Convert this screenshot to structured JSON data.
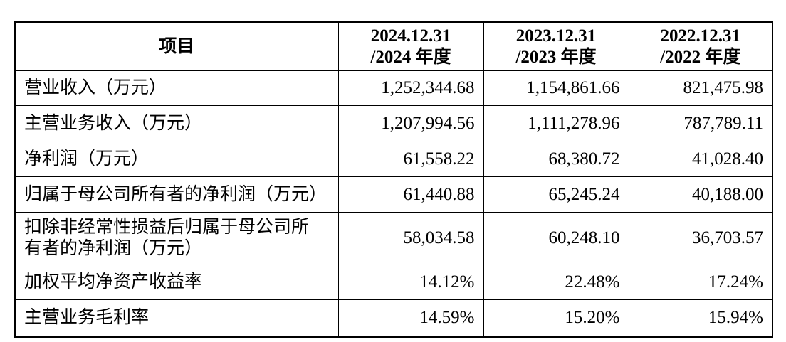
{
  "table": {
    "header": {
      "label": "项目",
      "columns": [
        [
          "2024.12.31",
          "/2024 年度"
        ],
        [
          "2023.12.31",
          "/2023 年度"
        ],
        [
          "2022.12.31",
          "/2022 年度"
        ]
      ]
    },
    "rows": [
      {
        "label": [
          "营业收入（万元）"
        ],
        "values": [
          "1,252,344.68",
          "1,154,861.66",
          "821,475.98"
        ]
      },
      {
        "label": [
          "主营业务收入（万元）"
        ],
        "values": [
          "1,207,994.56",
          "1,111,278.96",
          "787,789.11"
        ]
      },
      {
        "label": [
          "净利润（万元）"
        ],
        "values": [
          "61,558.22",
          "68,380.72",
          "41,028.40"
        ]
      },
      {
        "label": [
          "归属于母公司所有者的净利润（万元）"
        ],
        "values": [
          "61,440.88",
          "65,245.24",
          "40,188.00"
        ]
      },
      {
        "label": [
          "扣除非经常性损益后归属于母公司所",
          "有者的净利润（万元）"
        ],
        "values": [
          "58,034.58",
          "60,248.10",
          "36,703.57"
        ]
      },
      {
        "label": [
          "加权平均净资产收益率"
        ],
        "values": [
          "14.12%",
          "22.48%",
          "17.24%"
        ]
      },
      {
        "label": [
          "主营业务毛利率"
        ],
        "values": [
          "14.59%",
          "15.20%",
          "15.94%"
        ]
      }
    ]
  }
}
